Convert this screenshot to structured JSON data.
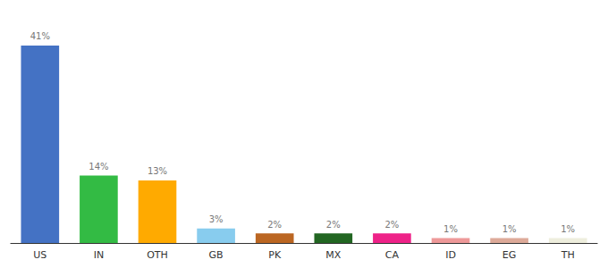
{
  "chart_data": {
    "type": "bar",
    "categories": [
      "US",
      "IN",
      "OTH",
      "GB",
      "PK",
      "MX",
      "CA",
      "ID",
      "EG",
      "TH"
    ],
    "values": [
      41,
      14,
      13,
      3,
      2,
      2,
      2,
      1,
      1,
      1
    ],
    "value_labels": [
      "41%",
      "14%",
      "13%",
      "3%",
      "2%",
      "2%",
      "2%",
      "1%",
      "1%",
      "1%"
    ],
    "colors": [
      "#4472c4",
      "#33bb44",
      "#ffaa00",
      "#88ccee",
      "#bb6622",
      "#226622",
      "#ee2288",
      "#ee9999",
      "#ddaa99",
      "#eeeedd"
    ],
    "ylim": [
      0,
      46
    ],
    "data_labels": true,
    "tick_labels": "x",
    "grid": false
  }
}
